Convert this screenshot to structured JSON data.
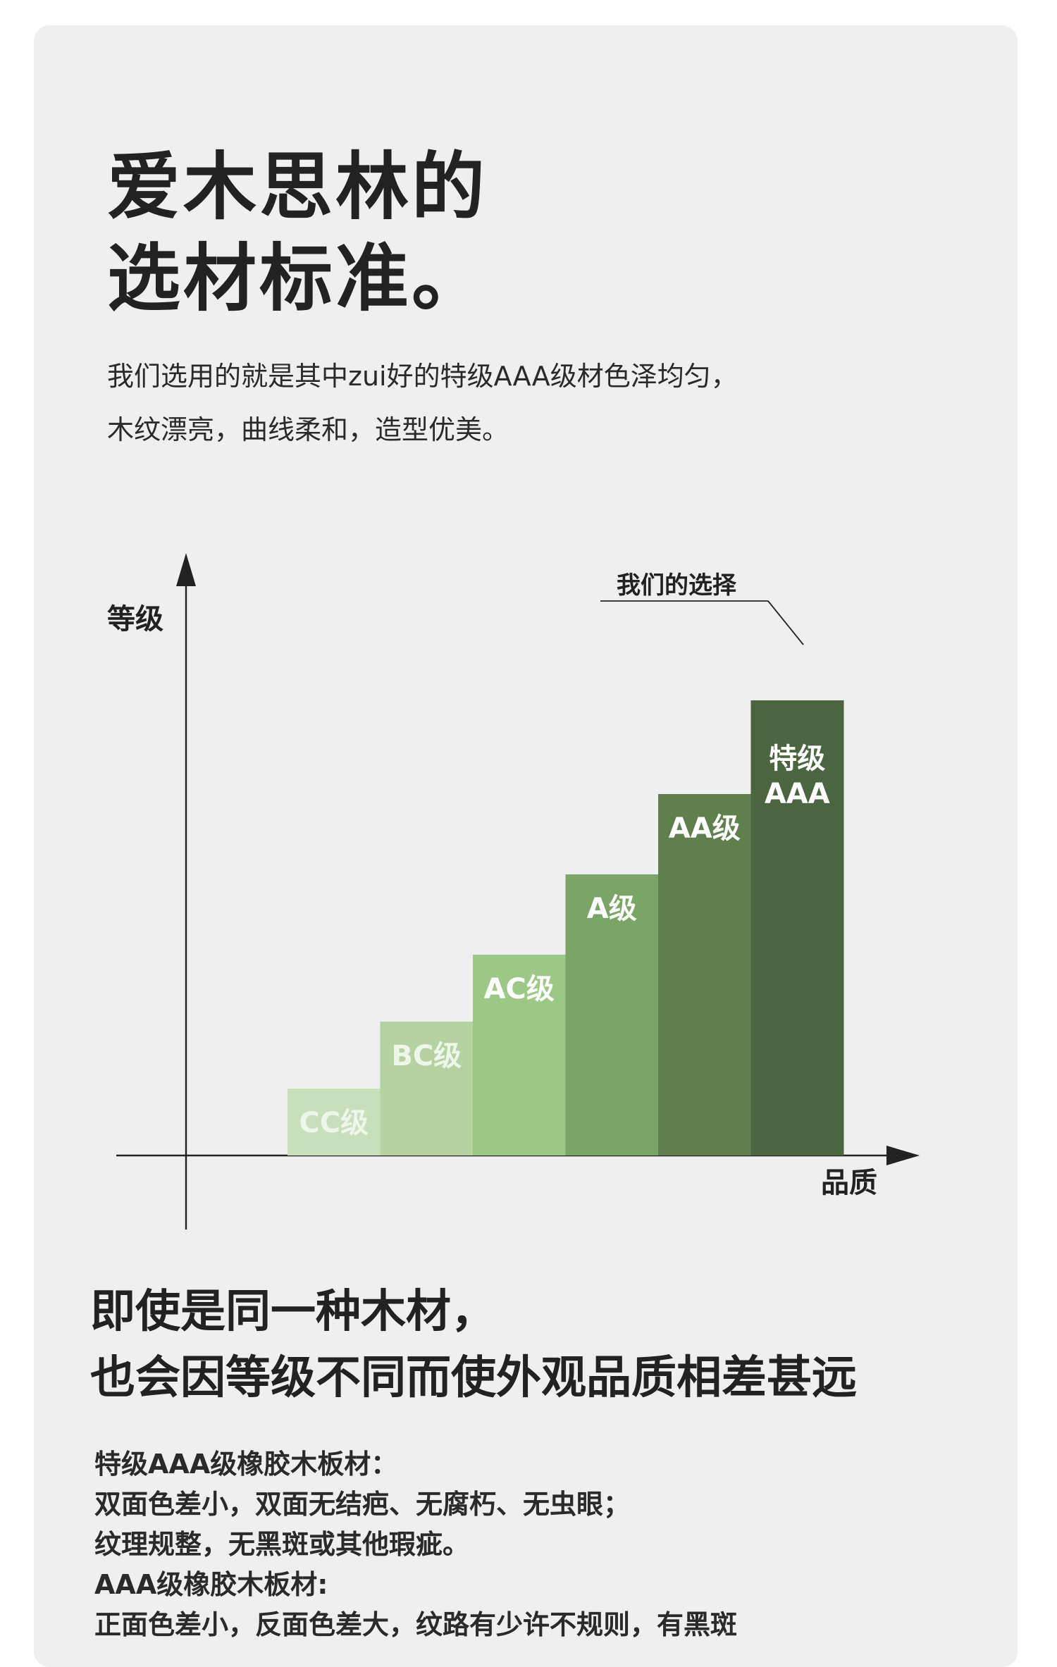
{
  "headline": {
    "line1": "爱木思林的",
    "line2": "选材标准。"
  },
  "intro": {
    "line1": "我们选用的就是其中zui好的特级AAA级材色泽均匀，",
    "line2": "木纹漂亮，曲线柔和，造型优美。"
  },
  "colors": {
    "background": "#efefef",
    "bars": [
      "#c8dfbb",
      "#b4d3a0",
      "#9dc785",
      "#7aa566",
      "#5f7f4c",
      "#4b6541"
    ]
  },
  "chart_data": {
    "type": "bar",
    "ylabel": "等级",
    "xlabel": "品质",
    "categories": [
      "CC级",
      "BC级",
      "AC级",
      "A级",
      "AA级",
      "特级 AAA"
    ],
    "values": [
      1,
      2,
      3,
      4.2,
      5.4,
      6.8
    ],
    "ylim": [
      0,
      8
    ],
    "annotation": {
      "text": "我们的选择",
      "target": "特级 AAA"
    },
    "grid": false,
    "legend": "none"
  },
  "section2": {
    "line1": "即使是同一种木材，",
    "line2": "也会因等级不同而使外观品质相差甚远"
  },
  "notes": {
    "line1": "特级AAA级橡胶木板材：",
    "line2": "双面色差小，双面无结疤、无腐朽、无虫眼；",
    "line3": "纹理规整，无黑斑或其他瑕疵。",
    "line4": "AAA级橡胶木板材:",
    "line5": "正面色差小，反面色差大，纹路有少许不规则，有黑斑"
  }
}
